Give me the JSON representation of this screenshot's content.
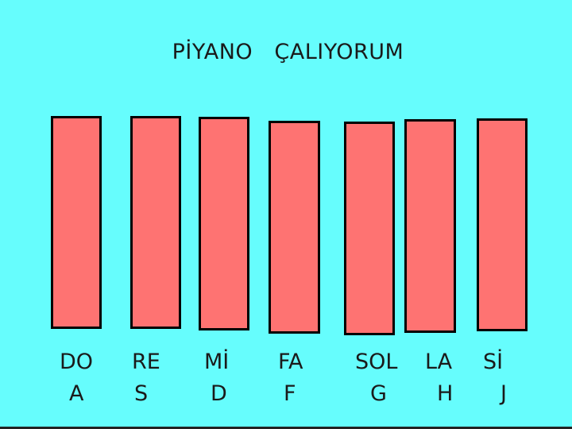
{
  "title": "PİYANO   ÇALIYORUM",
  "colors": {
    "background": "#66fdfd",
    "key_fill": "#fe7372",
    "key_border": "#000000"
  },
  "keys": [
    {
      "note": "DO",
      "shortcut": "A"
    },
    {
      "note": "RE",
      "shortcut": "S"
    },
    {
      "note": "Mİ",
      "shortcut": "D"
    },
    {
      "note": "FA",
      "shortcut": "F"
    },
    {
      "note": "SOL",
      "shortcut": "G"
    },
    {
      "note": "LA",
      "shortcut": "H"
    },
    {
      "note": "Sİ",
      "shortcut": "J"
    }
  ]
}
